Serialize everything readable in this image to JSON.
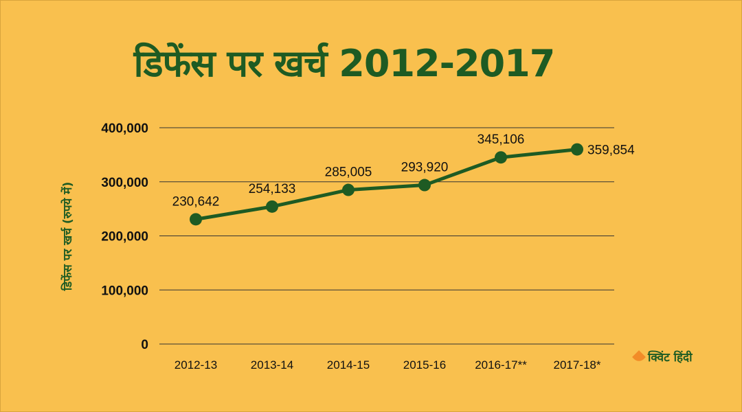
{
  "page": {
    "title": "डिफेंस पर खर्च 2012-2017",
    "logo_text": "क्विंट हिंदी"
  },
  "colors": {
    "background": "#F9C04E",
    "series": "#1E5B23",
    "grid": "#333333",
    "logo_accent": "#F28C28"
  },
  "chart_data": {
    "type": "line",
    "title": "डिफेंस पर खर्च 2012-2017",
    "xlabel": "",
    "ylabel": "डिफेंस पर खर्च (रुपये में)",
    "categories": [
      "2012-13",
      "2013-14",
      "2014-15",
      "2015-16",
      "2016-17**",
      "2017-18*"
    ],
    "series": [
      {
        "values": [
          230642,
          254133,
          285005,
          293920,
          345106,
          359854
        ]
      }
    ],
    "data_labels": [
      "230,642",
      "254,133",
      "285,005",
      "293,920",
      "345,106",
      "359,854"
    ],
    "yticks": [
      0,
      100000,
      200000,
      300000,
      400000
    ],
    "ytick_labels": [
      "0",
      "100,000",
      "200,000",
      "300,000",
      "400,000"
    ],
    "ylim": [
      0,
      400000
    ],
    "grid": true,
    "legend": "none"
  }
}
